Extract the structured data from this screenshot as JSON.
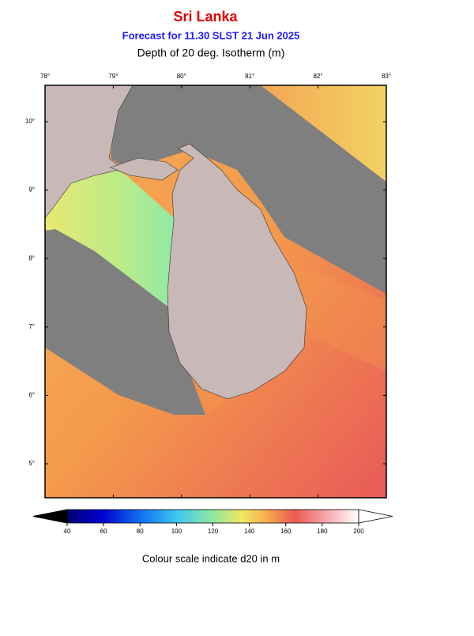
{
  "title": "Sri Lanka",
  "subtitle": "Forecast for  11.30 SLST 21 Jun 2025",
  "heading": "Depth of 20 deg. Isotherm (m)",
  "map": {
    "lon_ticks": [
      {
        "value": 78,
        "label": "78°"
      },
      {
        "value": 79,
        "label": "79°"
      },
      {
        "value": 80,
        "label": "80°"
      },
      {
        "value": 81,
        "label": "81°"
      },
      {
        "value": 82,
        "label": "82°"
      },
      {
        "value": 83,
        "label": "83°"
      }
    ],
    "lat_ticks": [
      {
        "value": 10,
        "label": "10°"
      },
      {
        "value": 9,
        "label": "9°"
      },
      {
        "value": 8,
        "label": "8°"
      },
      {
        "value": 7,
        "label": "7°"
      },
      {
        "value": 6,
        "label": "6°"
      },
      {
        "value": 5,
        "label": "5°"
      }
    ]
  },
  "colorbar": {
    "range": [
      40,
      200
    ],
    "ticks": [
      40,
      60,
      80,
      100,
      120,
      140,
      160,
      180,
      200
    ]
  },
  "caption": "Colour scale indicate d20 in m"
}
